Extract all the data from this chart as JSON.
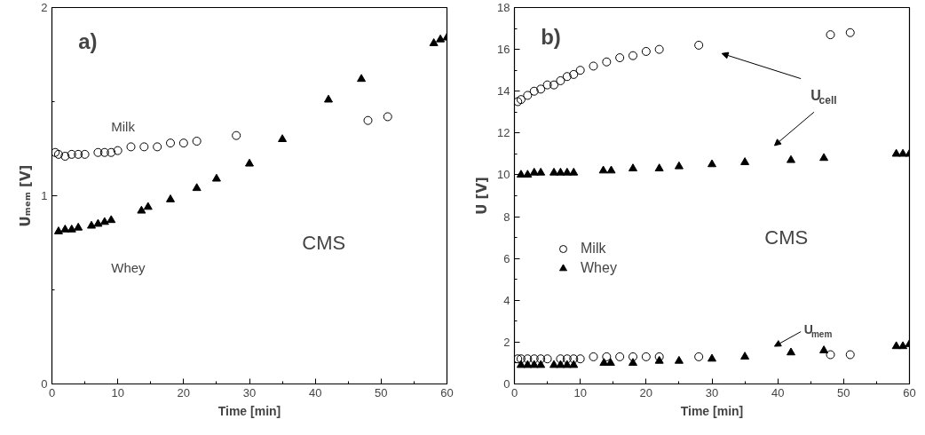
{
  "chart_data": [
    {
      "type": "scatter",
      "xlabel": "Time [min]",
      "ylabel": "Uₘₑₘ [V]",
      "xlim": [
        0,
        60
      ],
      "ylim": [
        0,
        2
      ],
      "xticks": [
        0,
        {
          "value": 5,
          "label": null
        },
        10,
        {
          "value": 15,
          "label": null
        },
        20,
        {
          "value": 25,
          "label": null
        },
        30,
        {
          "value": 35,
          "label": null
        },
        40,
        {
          "value": 45,
          "label": null
        },
        50,
        {
          "value": 55,
          "label": null
        },
        60
      ],
      "yticks": [
        0,
        {
          "value": 0.5,
          "label": null
        },
        1,
        {
          "value": 1.5,
          "label": null
        },
        2
      ],
      "grid": false,
      "legend": false,
      "annotations": [
        "a)",
        "CMS"
      ],
      "series": [
        {
          "name": "Milk",
          "color": "#000000",
          "marker": "circle",
          "x": [
            0.5,
            1,
            2,
            3,
            4,
            5,
            7,
            8,
            9,
            10,
            12,
            14,
            16,
            18,
            20,
            22,
            28,
            48,
            51
          ],
          "values": [
            1.23,
            1.22,
            1.21,
            1.22,
            1.22,
            1.22,
            1.23,
            1.23,
            1.23,
            1.24,
            1.26,
            1.26,
            1.26,
            1.28,
            1.28,
            1.29,
            1.32,
            1.4,
            1.42
          ]
        },
        {
          "name": "Whey",
          "color": "#000000",
          "marker": "triangle",
          "x": [
            1,
            2,
            3,
            4,
            6,
            7,
            8,
            9,
            13.6,
            14.6,
            18,
            22,
            25,
            30,
            35,
            42,
            47,
            58,
            59,
            60
          ],
          "values": [
            0.81,
            0.82,
            0.82,
            0.83,
            0.84,
            0.85,
            0.86,
            0.87,
            0.92,
            0.94,
            0.98,
            1.04,
            1.09,
            1.17,
            1.3,
            1.51,
            1.62,
            1.81,
            1.83,
            1.84
          ]
        }
      ]
    },
    {
      "type": "scatter",
      "xlabel": "Time [min]",
      "ylabel": "U [V]",
      "xlim": [
        0,
        60
      ],
      "ylim": [
        0,
        18
      ],
      "xticks": [
        0,
        {
          "value": 5,
          "label": null
        },
        10,
        {
          "value": 15,
          "label": null
        },
        20,
        {
          "value": 25,
          "label": null
        },
        30,
        {
          "value": 35,
          "label": null
        },
        40,
        {
          "value": 45,
          "label": null
        },
        50,
        {
          "value": 55,
          "label": null
        },
        60
      ],
      "yticks": [
        0,
        {
          "value": 1,
          "label": null
        },
        2,
        {
          "value": 3,
          "label": null
        },
        4,
        {
          "value": 5,
          "label": null
        },
        6,
        {
          "value": 7,
          "label": null
        },
        8,
        {
          "value": 9,
          "label": null
        },
        10,
        {
          "value": 11,
          "label": null
        },
        12,
        {
          "value": 13,
          "label": null
        },
        14,
        {
          "value": 15,
          "label": null
        },
        16,
        {
          "value": 17,
          "label": null
        },
        18
      ],
      "grid": false,
      "legend": "left",
      "annotations": [
        "b)",
        "CMS",
        "U$_{cell}$",
        "U$_{mem}$"
      ],
      "series": [
        {
          "name": "Milk",
          "color": "#000000",
          "marker": "circle",
          "x": [
            0.5,
            1,
            2,
            3,
            4,
            5,
            6,
            7,
            8,
            9,
            10,
            12,
            14,
            16,
            18,
            20,
            22,
            28,
            48,
            51
          ],
          "values": [
            13.5,
            13.6,
            13.8,
            14.0,
            14.1,
            14.3,
            14.3,
            14.5,
            14.7,
            14.8,
            15.0,
            15.2,
            15.4,
            15.6,
            15.7,
            15.9,
            16.0,
            16.2,
            16.7,
            16.8
          ]
        },
        {
          "name": "Whey",
          "color": "#000000",
          "marker": "triangle",
          "x": [
            1,
            2,
            3,
            4,
            6,
            7,
            8,
            9,
            13.5,
            14.7,
            18,
            22,
            25,
            30,
            35,
            42,
            47,
            58,
            59,
            60
          ],
          "values": [
            10.0,
            10.0,
            10.1,
            10.1,
            10.1,
            10.1,
            10.1,
            10.1,
            10.2,
            10.2,
            10.3,
            10.3,
            10.4,
            10.5,
            10.6,
            10.7,
            10.8,
            11.0,
            11.0,
            11.0
          ]
        },
        {
          "color": "#000000",
          "marker": "circle",
          "x": [
            0.5,
            1,
            2,
            3,
            4,
            5,
            7,
            8,
            9,
            10,
            12,
            14,
            16,
            18,
            20,
            22,
            28,
            48,
            51
          ],
          "values": [
            1.2,
            1.2,
            1.2,
            1.2,
            1.2,
            1.2,
            1.2,
            1.2,
            1.2,
            1.2,
            1.3,
            1.3,
            1.3,
            1.3,
            1.3,
            1.3,
            1.3,
            1.4,
            1.4
          ]
        },
        {
          "color": "#000000",
          "marker": "triangle",
          "x": [
            1,
            2,
            3,
            4,
            6,
            7,
            8,
            9,
            13.6,
            14.6,
            18,
            22,
            25,
            30,
            35,
            42,
            47,
            58,
            59,
            60
          ],
          "values": [
            0.9,
            0.9,
            0.9,
            0.9,
            0.9,
            0.9,
            0.9,
            0.9,
            1.0,
            1.0,
            1.0,
            1.1,
            1.1,
            1.2,
            1.3,
            1.5,
            1.6,
            1.8,
            1.8,
            1.9
          ]
        }
      ]
    }
  ]
}
